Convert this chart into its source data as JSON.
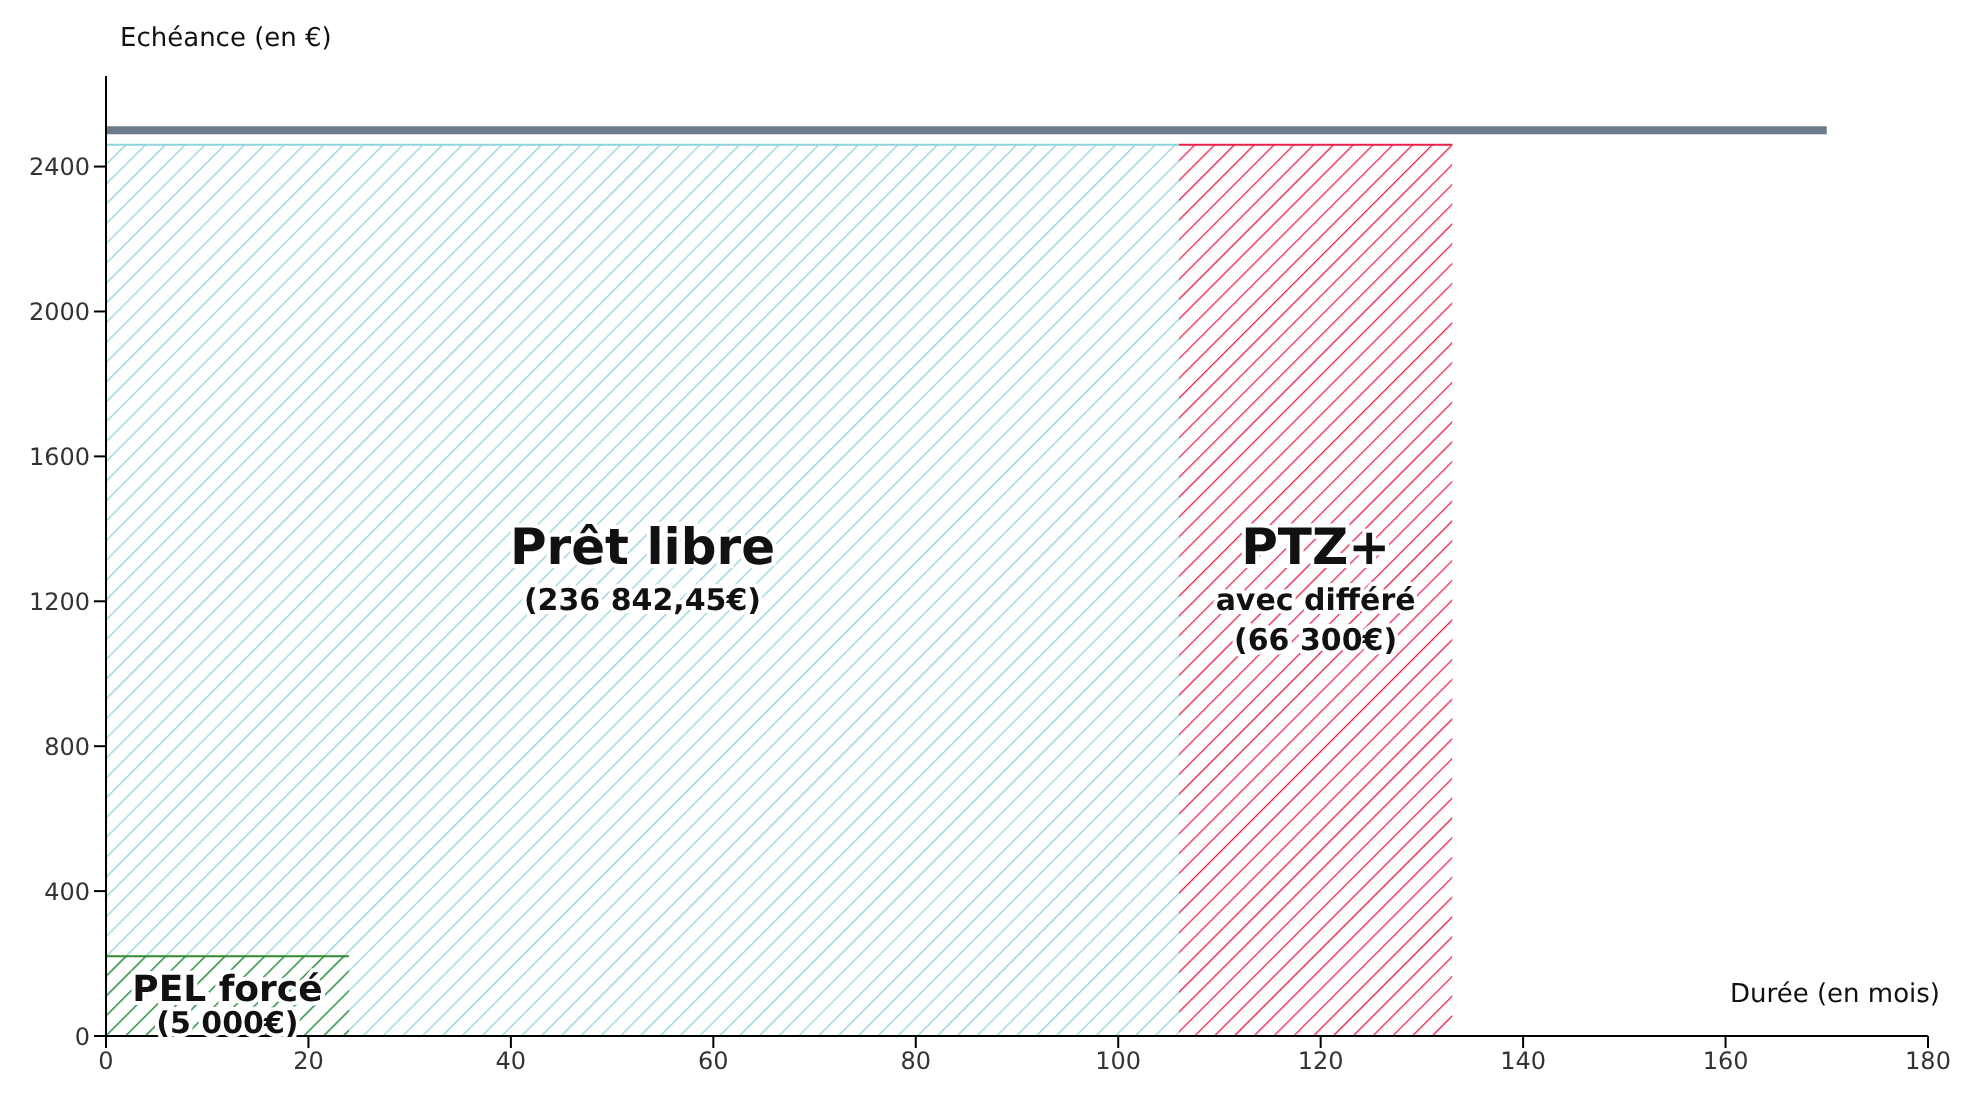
{
  "chart_data": {
    "type": "area",
    "xlabel": "Durée (en mois)",
    "ylabel": "Echéance (en €)",
    "xlim": [
      0,
      180
    ],
    "xticks": [
      0,
      20,
      40,
      60,
      80,
      100,
      120,
      140,
      160,
      180
    ],
    "ylim": [
      0,
      2650
    ],
    "yticks": [
      0,
      400,
      800,
      1200,
      1600,
      2000,
      2400
    ],
    "grid": false,
    "legend": false,
    "series": [
      {
        "name": "Prêt libre",
        "color": "#8fd3dc",
        "x": [
          0,
          106
        ],
        "values": [
          2460,
          2460
        ]
      },
      {
        "name": "PTZ+",
        "color": "#e8204a",
        "x": [
          106,
          133
        ],
        "values": [
          2460,
          2460
        ]
      },
      {
        "name": "PEL forcé",
        "color": "#2e8b2e",
        "x": [
          0,
          24
        ],
        "values": [
          220,
          220
        ]
      },
      {
        "type": "line",
        "color": "#6e7b8b",
        "x": [
          0,
          170
        ],
        "values": [
          2500,
          2500
        ]
      }
    ],
    "annotations": [
      "(236 842,45€)",
      "avec différé\n(66 300€)",
      "(5 000€)"
    ]
  }
}
